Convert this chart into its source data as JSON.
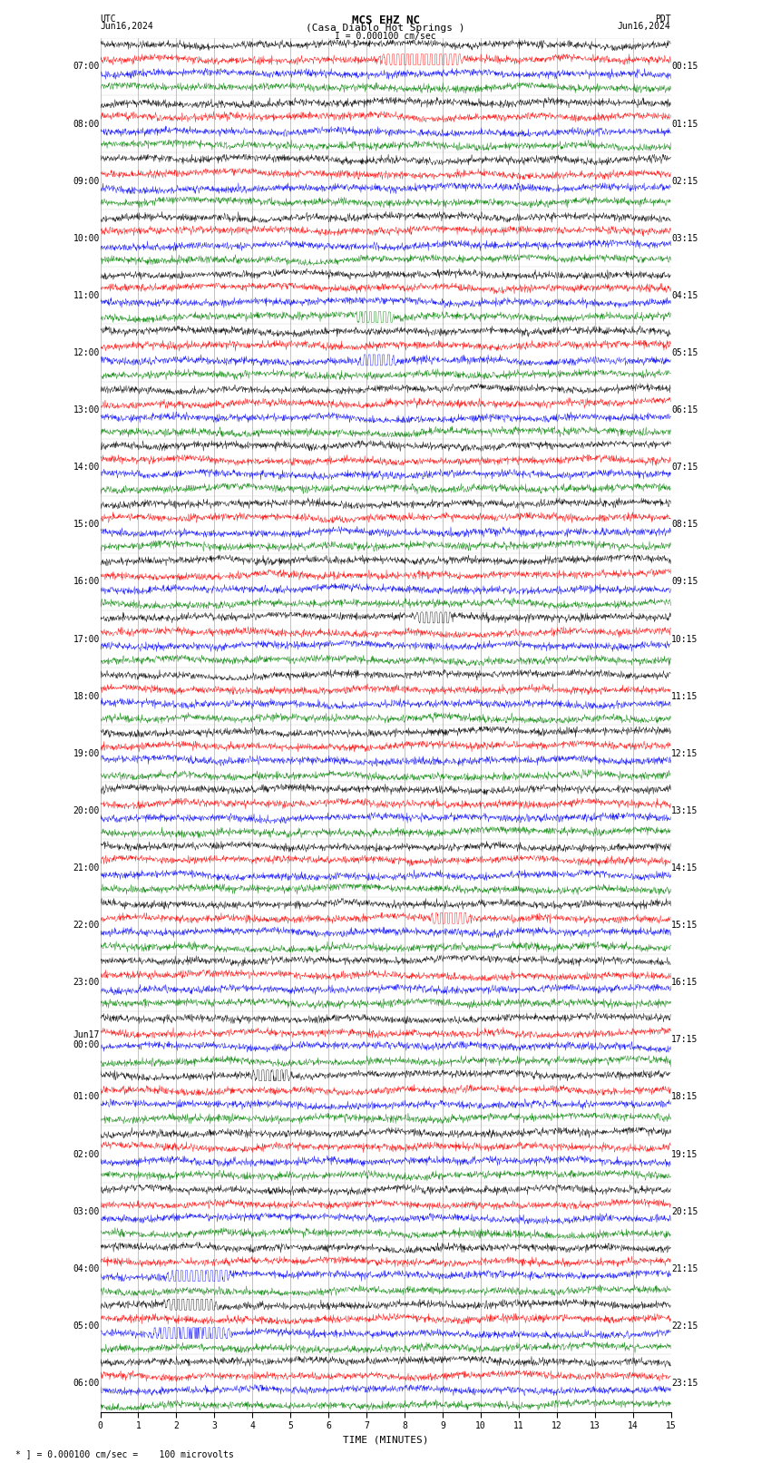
{
  "title_line1": "MCS EHZ NC",
  "title_line2": "(Casa Diablo Hot Springs )",
  "title_line3": "I = 0.000100 cm/sec",
  "xlabel": "TIME (MINUTES)",
  "footer": "* ] = 0.000100 cm/sec =    100 microvolts",
  "utc_labels": [
    "07:00",
    "08:00",
    "09:00",
    "10:00",
    "11:00",
    "12:00",
    "13:00",
    "14:00",
    "15:00",
    "16:00",
    "17:00",
    "18:00",
    "19:00",
    "20:00",
    "21:00",
    "22:00",
    "23:00",
    "Jun17\n00:00",
    "01:00",
    "02:00",
    "03:00",
    "04:00",
    "05:00",
    "06:00"
  ],
  "pdt_labels": [
    "00:15",
    "01:15",
    "02:15",
    "03:15",
    "04:15",
    "05:15",
    "06:15",
    "07:15",
    "08:15",
    "09:15",
    "10:15",
    "11:15",
    "12:15",
    "13:15",
    "14:15",
    "15:15",
    "16:15",
    "17:15",
    "18:15",
    "19:15",
    "20:15",
    "21:15",
    "22:15",
    "23:15"
  ],
  "n_time_groups": 24,
  "n_colors": 4,
  "xmin": 0,
  "xmax": 15,
  "colors": [
    "black",
    "red",
    "blue",
    "green"
  ],
  "bg_color": "white",
  "grid_color": "#888888",
  "label_fontsize": 7,
  "title_fontsize": 9,
  "noise_scale": 0.12
}
